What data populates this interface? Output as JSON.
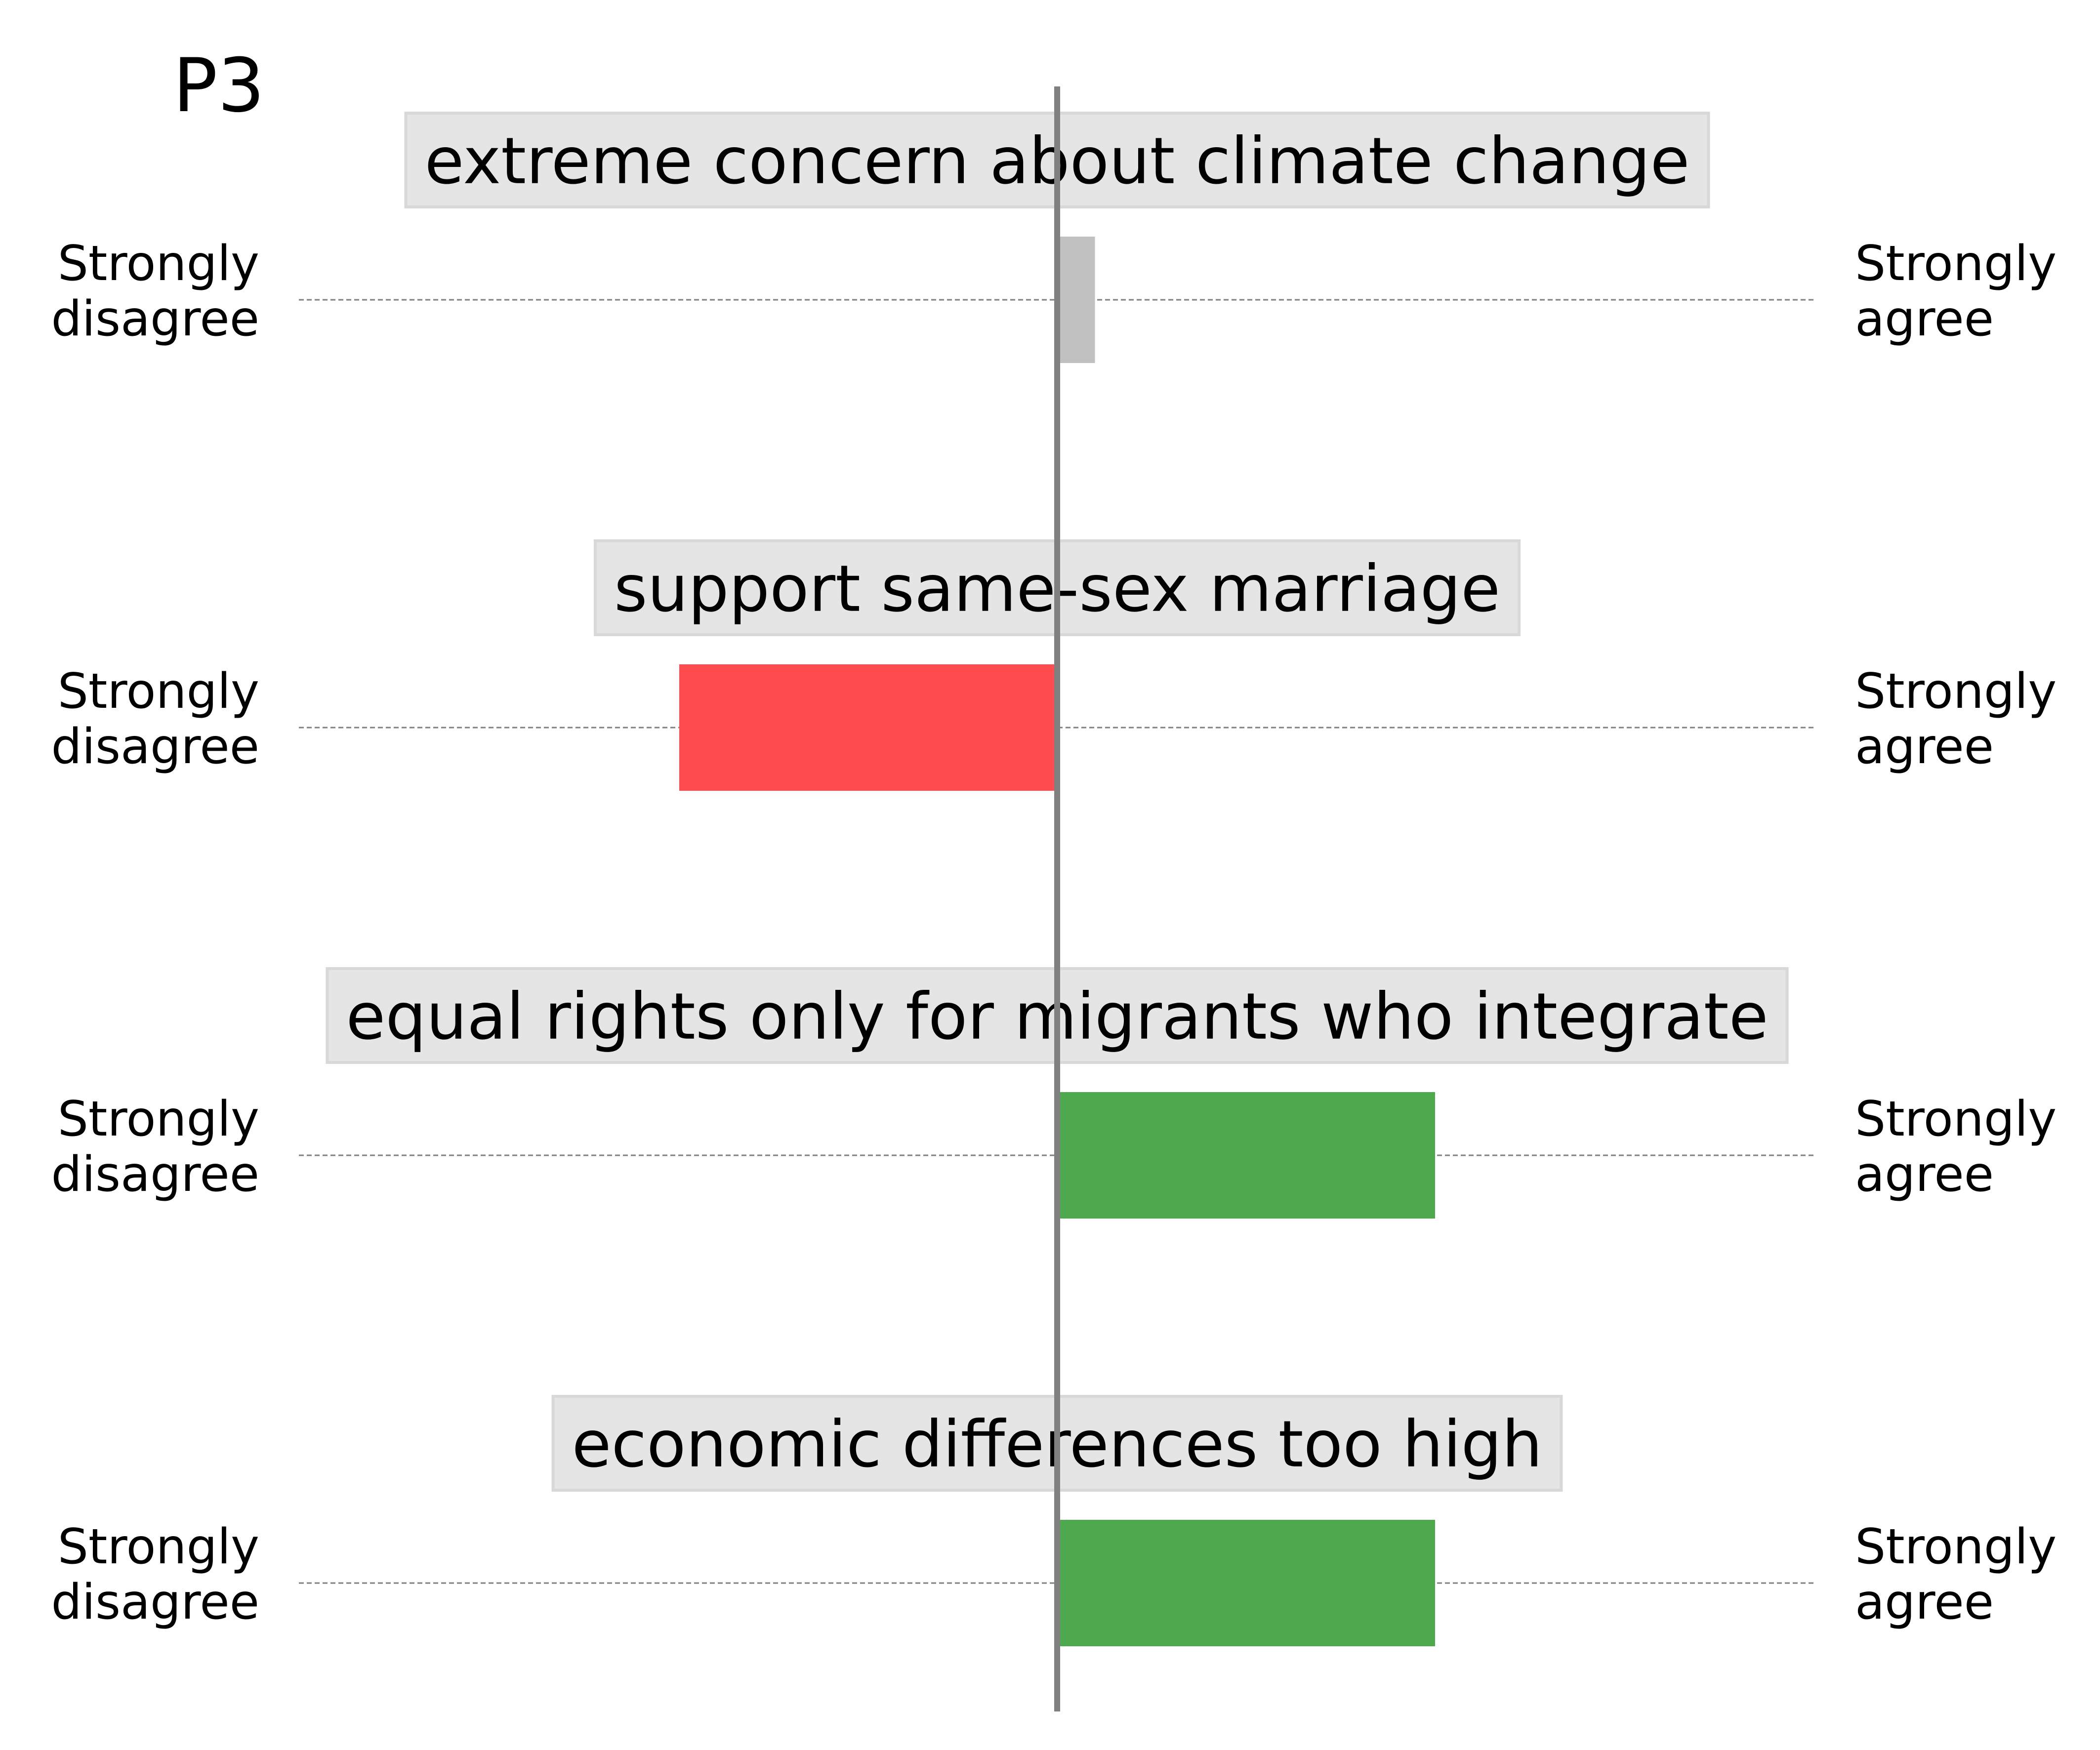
{
  "chart_data": {
    "type": "bar",
    "orientation": "horizontal",
    "title": "P3",
    "xlim": [
      -1,
      1
    ],
    "left_label": "Strongly\ndisagree",
    "right_label": "Strongly\nagree",
    "items": [
      {
        "label": "extreme concern about climate change",
        "value": 0.05,
        "color": "#c0c0c0"
      },
      {
        "label": "support same-sex marriage",
        "value": -0.5,
        "color": "#ff4d4f"
      },
      {
        "label": "equal rights only for migrants who integrate",
        "value": 0.5,
        "color": "#4ea84e"
      },
      {
        "label": "economic differences too high",
        "value": 0.5,
        "color": "#4ea84e"
      }
    ],
    "colors": {
      "label_box": "#e5e5e5",
      "center_line": "#808080",
      "guide_line": "#808080",
      "text": "#000000"
    }
  }
}
